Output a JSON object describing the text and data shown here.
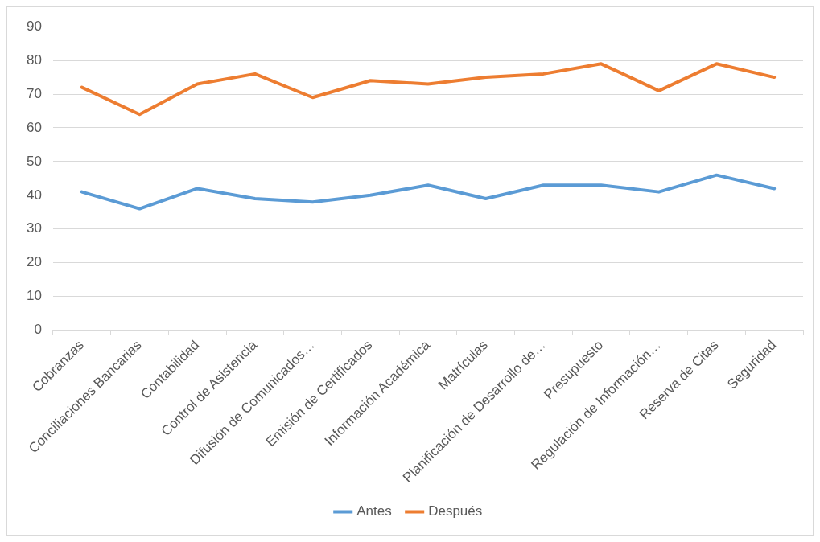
{
  "chart_data": {
    "type": "line",
    "categories": [
      "Cobranzas",
      "Conciliaciones Bancarias",
      "Contabilidad",
      "Control de Asistencia",
      "Difusión de Comunicados…",
      "Emisión de Certificados",
      "Información Académica",
      "Matrículas",
      "Planificación de Desarrollo de…",
      "Presupuesto",
      "Regulación de Información…",
      "Reserva de Citas",
      "Seguridad"
    ],
    "series": [
      {
        "name": "Antes",
        "color": "#5b9bd5",
        "values": [
          41,
          36,
          42,
          39,
          38,
          40,
          43,
          39,
          43,
          43,
          41,
          46,
          42
        ]
      },
      {
        "name": "Después",
        "color": "#ed7d31",
        "values": [
          72,
          64,
          73,
          76,
          69,
          74,
          73,
          75,
          76,
          79,
          71,
          79,
          75
        ]
      }
    ],
    "ylim": [
      0,
      90
    ],
    "yticks": [
      0,
      10,
      20,
      30,
      40,
      50,
      60,
      70,
      80,
      90
    ],
    "grid": "y",
    "legend": "bottom",
    "marker": "none",
    "line_style": "solid"
  }
}
